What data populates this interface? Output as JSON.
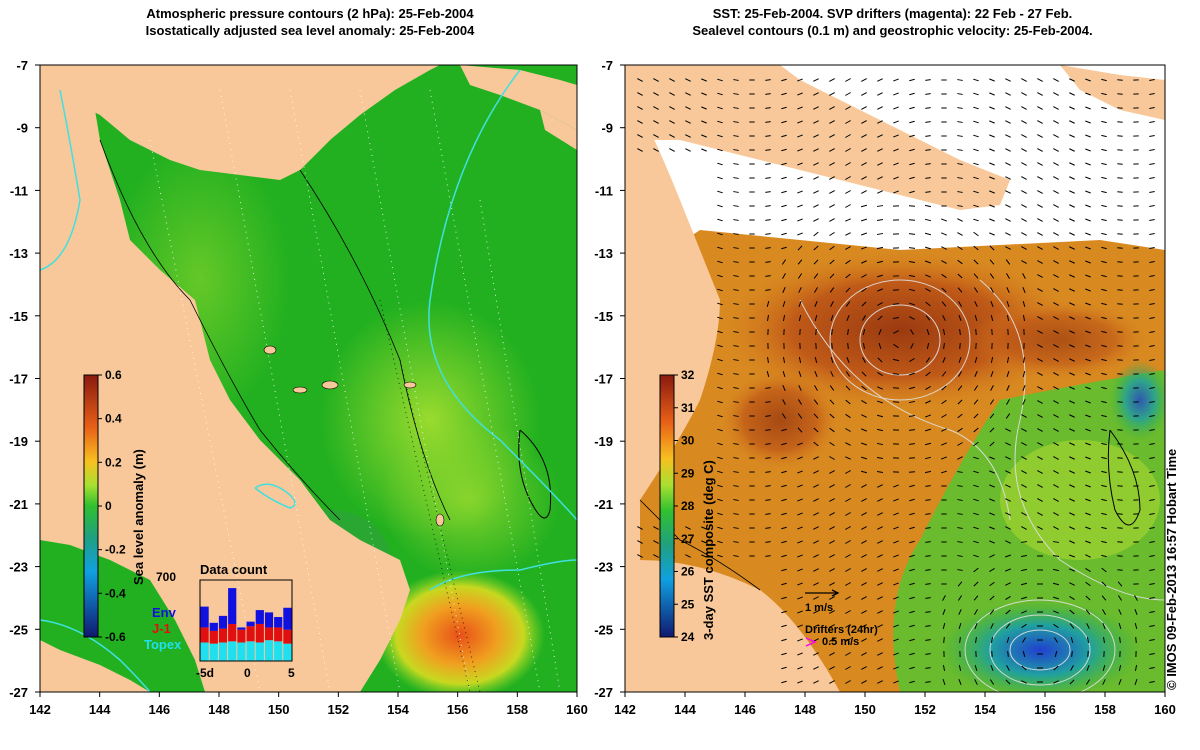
{
  "titles": {
    "left_line1": "Atmospheric pressure contours (2 hPa): 25-Feb-2004",
    "left_line2": "Isostatically adjusted sea level anomaly: 25-Feb-2004",
    "right_line1": "SST: 25-Feb-2004. SVP drifters (magenta): 22 Feb - 27 Feb.",
    "right_line2": "Sealevel contours (0.1 m) and geostrophic velocity: 25-Feb-2004."
  },
  "credit": "© IMOS 09-Feb-2013 16:57 Hobart Time",
  "colors": {
    "land": "#f8c89a",
    "ocean_green": "#22b020",
    "contour_cyan": "#40e0e0",
    "vector": "#000000",
    "drifter": "#ff00ff"
  },
  "left_colorbar": {
    "label": "Sea level anomaly (m)",
    "ticks": [
      "0.6",
      "0.4",
      "0.2",
      "0",
      "-0.2",
      "-0.4",
      "-0.6"
    ]
  },
  "right_colorbar": {
    "label": "3-day SST composite (deg C)",
    "ticks": [
      "32",
      "31",
      "30",
      "29",
      "28",
      "27",
      "26",
      "25",
      "24"
    ]
  },
  "inset": {
    "title": "Data count",
    "ymax_label": "700",
    "x_labels": [
      "-5d",
      "0",
      "5"
    ],
    "legend": [
      {
        "name": "Env",
        "color": "#1010e0"
      },
      {
        "name": "J-1",
        "color": "#e01010"
      },
      {
        "name": "Topex",
        "color": "#20e0f0"
      }
    ]
  },
  "velocity_legend": {
    "scale_label": "1 m/s",
    "drifters_label": "Drifters (24hr)",
    "drifter_scale_label": "0.5 m/s"
  },
  "chart_data": [
    {
      "type": "heatmap",
      "title": "Atmospheric pressure contours (2 hPa): 25-Feb-2004 / Isostatically adjusted sea level anomaly: 25-Feb-2004",
      "x_ticks": [
        142,
        144,
        146,
        148,
        150,
        152,
        154,
        156,
        158,
        160
      ],
      "y_ticks": [
        -7,
        -9,
        -11,
        -13,
        -15,
        -17,
        -19,
        -21,
        -23,
        -25,
        -27
      ],
      "xlim": [
        142,
        160
      ],
      "ylim": [
        -27,
        -7
      ],
      "value_range": [
        -0.6,
        0.6
      ]
    },
    {
      "type": "heatmap",
      "title": "SST: 25-Feb-2004. SVP drifters (magenta): 22 Feb - 27 Feb. / Sealevel contours (0.1 m) and geostrophic velocity: 25-Feb-2004.",
      "x_ticks": [
        142,
        144,
        146,
        148,
        150,
        152,
        154,
        156,
        158,
        160
      ],
      "y_ticks": [
        -7,
        -9,
        -11,
        -13,
        -15,
        -17,
        -19,
        -21,
        -23,
        -25,
        -27
      ],
      "xlim": [
        142,
        160
      ],
      "ylim": [
        -27,
        -7
      ],
      "value_range": [
        24,
        32
      ]
    },
    {
      "type": "bar",
      "title": "Data count",
      "x": [
        -5,
        -4,
        -3,
        -2,
        -1,
        0,
        1,
        2,
        3,
        4
      ],
      "ylim": [
        0,
        700
      ],
      "series": [
        {
          "name": "Topex",
          "values": [
            160,
            150,
            160,
            170,
            160,
            170,
            160,
            180,
            170,
            150
          ]
        },
        {
          "name": "J-1",
          "values": [
            130,
            110,
            120,
            150,
            110,
            130,
            160,
            110,
            120,
            120
          ]
        },
        {
          "name": "Env",
          "values": [
            180,
            70,
            110,
            310,
            20,
            40,
            120,
            130,
            90,
            190
          ]
        }
      ]
    }
  ]
}
